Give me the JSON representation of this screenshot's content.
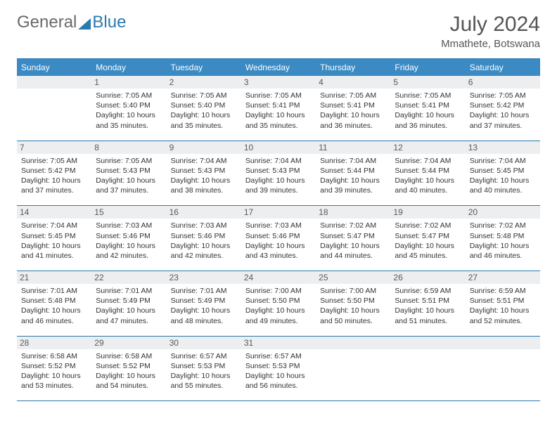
{
  "logo": {
    "part1": "General",
    "part2": "Blue"
  },
  "title": "July 2024",
  "location": "Mmathete, Botswana",
  "dow": [
    "Sunday",
    "Monday",
    "Tuesday",
    "Wednesday",
    "Thursday",
    "Friday",
    "Saturday"
  ],
  "colors": {
    "header_bg": "#3b8ac4",
    "rule": "#2a7ab0",
    "daybar": "#eceeef"
  },
  "weeks": [
    [
      {
        "blank": true
      },
      {
        "n": "1",
        "sr": "7:05 AM",
        "ss": "5:40 PM",
        "dl": "10 hours and 35 minutes."
      },
      {
        "n": "2",
        "sr": "7:05 AM",
        "ss": "5:40 PM",
        "dl": "10 hours and 35 minutes."
      },
      {
        "n": "3",
        "sr": "7:05 AM",
        "ss": "5:41 PM",
        "dl": "10 hours and 35 minutes."
      },
      {
        "n": "4",
        "sr": "7:05 AM",
        "ss": "5:41 PM",
        "dl": "10 hours and 36 minutes."
      },
      {
        "n": "5",
        "sr": "7:05 AM",
        "ss": "5:41 PM",
        "dl": "10 hours and 36 minutes."
      },
      {
        "n": "6",
        "sr": "7:05 AM",
        "ss": "5:42 PM",
        "dl": "10 hours and 37 minutes."
      }
    ],
    [
      {
        "n": "7",
        "sr": "7:05 AM",
        "ss": "5:42 PM",
        "dl": "10 hours and 37 minutes."
      },
      {
        "n": "8",
        "sr": "7:05 AM",
        "ss": "5:43 PM",
        "dl": "10 hours and 37 minutes."
      },
      {
        "n": "9",
        "sr": "7:04 AM",
        "ss": "5:43 PM",
        "dl": "10 hours and 38 minutes."
      },
      {
        "n": "10",
        "sr": "7:04 AM",
        "ss": "5:43 PM",
        "dl": "10 hours and 39 minutes."
      },
      {
        "n": "11",
        "sr": "7:04 AM",
        "ss": "5:44 PM",
        "dl": "10 hours and 39 minutes."
      },
      {
        "n": "12",
        "sr": "7:04 AM",
        "ss": "5:44 PM",
        "dl": "10 hours and 40 minutes."
      },
      {
        "n": "13",
        "sr": "7:04 AM",
        "ss": "5:45 PM",
        "dl": "10 hours and 40 minutes."
      }
    ],
    [
      {
        "n": "14",
        "sr": "7:04 AM",
        "ss": "5:45 PM",
        "dl": "10 hours and 41 minutes."
      },
      {
        "n": "15",
        "sr": "7:03 AM",
        "ss": "5:46 PM",
        "dl": "10 hours and 42 minutes."
      },
      {
        "n": "16",
        "sr": "7:03 AM",
        "ss": "5:46 PM",
        "dl": "10 hours and 42 minutes."
      },
      {
        "n": "17",
        "sr": "7:03 AM",
        "ss": "5:46 PM",
        "dl": "10 hours and 43 minutes."
      },
      {
        "n": "18",
        "sr": "7:02 AM",
        "ss": "5:47 PM",
        "dl": "10 hours and 44 minutes."
      },
      {
        "n": "19",
        "sr": "7:02 AM",
        "ss": "5:47 PM",
        "dl": "10 hours and 45 minutes."
      },
      {
        "n": "20",
        "sr": "7:02 AM",
        "ss": "5:48 PM",
        "dl": "10 hours and 46 minutes."
      }
    ],
    [
      {
        "n": "21",
        "sr": "7:01 AM",
        "ss": "5:48 PM",
        "dl": "10 hours and 46 minutes."
      },
      {
        "n": "22",
        "sr": "7:01 AM",
        "ss": "5:49 PM",
        "dl": "10 hours and 47 minutes."
      },
      {
        "n": "23",
        "sr": "7:01 AM",
        "ss": "5:49 PM",
        "dl": "10 hours and 48 minutes."
      },
      {
        "n": "24",
        "sr": "7:00 AM",
        "ss": "5:50 PM",
        "dl": "10 hours and 49 minutes."
      },
      {
        "n": "25",
        "sr": "7:00 AM",
        "ss": "5:50 PM",
        "dl": "10 hours and 50 minutes."
      },
      {
        "n": "26",
        "sr": "6:59 AM",
        "ss": "5:51 PM",
        "dl": "10 hours and 51 minutes."
      },
      {
        "n": "27",
        "sr": "6:59 AM",
        "ss": "5:51 PM",
        "dl": "10 hours and 52 minutes."
      }
    ],
    [
      {
        "n": "28",
        "sr": "6:58 AM",
        "ss": "5:52 PM",
        "dl": "10 hours and 53 minutes."
      },
      {
        "n": "29",
        "sr": "6:58 AM",
        "ss": "5:52 PM",
        "dl": "10 hours and 54 minutes."
      },
      {
        "n": "30",
        "sr": "6:57 AM",
        "ss": "5:53 PM",
        "dl": "10 hours and 55 minutes."
      },
      {
        "n": "31",
        "sr": "6:57 AM",
        "ss": "5:53 PM",
        "dl": "10 hours and 56 minutes."
      },
      {
        "blank": true
      },
      {
        "blank": true
      },
      {
        "blank": true
      }
    ]
  ],
  "labels": {
    "sunrise": "Sunrise:",
    "sunset": "Sunset:",
    "daylight": "Daylight:"
  }
}
